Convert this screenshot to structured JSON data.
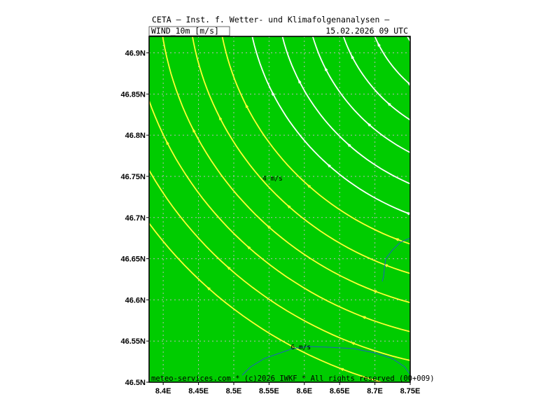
{
  "header": {
    "institute": "CETA — Inst. f. Wetter- und Klimafolgenanalysen —",
    "field": "WIND_10m [m/s]",
    "datetime": "15.02.2026 09 UTC"
  },
  "footer": {
    "credit": "meteo-services.com * (c)2026 IWKF * All rights reserved (00+009)"
  },
  "colors": {
    "background_fill": "#00cc00",
    "streamline_white": "#ffffff",
    "streamline_yellow": "#ffff33",
    "border_line": "#1f5fbf",
    "grid": "#b0b0b0"
  },
  "map": {
    "lon_range": [
      8.38,
      8.75
    ],
    "lat_range": [
      46.5,
      46.92
    ],
    "x_ticks": [
      "8.4E",
      "8.45E",
      "8.5E",
      "8.55E",
      "8.6E",
      "8.65E",
      "8.7E",
      "8.75E"
    ],
    "x_tick_values": [
      8.4,
      8.45,
      8.5,
      8.55,
      8.6,
      8.65,
      8.7,
      8.75
    ],
    "y_ticks": [
      "46.9N",
      "46.85N",
      "46.8N",
      "46.75N",
      "46.7N",
      "46.65N",
      "46.6N",
      "46.55N",
      "46.5N"
    ],
    "y_tick_values": [
      46.9,
      46.85,
      46.8,
      46.75,
      46.7,
      46.65,
      46.6,
      46.55,
      46.5
    ],
    "isotach_labels": [
      {
        "text": "4 m/s",
        "lon": 8.555,
        "lat": 46.745
      },
      {
        "text": "6 m/s",
        "lon": 8.595,
        "lat": 46.54
      }
    ]
  }
}
